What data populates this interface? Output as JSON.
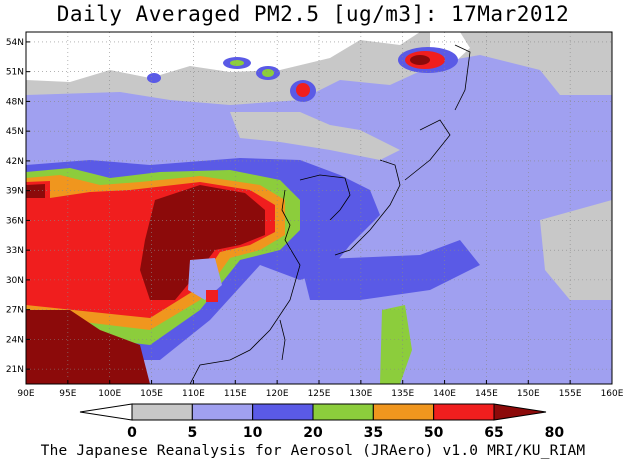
{
  "title": "Daily Averaged PM2.5 [ug/m3]: 17Mar2012",
  "footer": "The Japanese Reanalysis for Aerosol (JRAero) v1.0 MRI/KU_RIAM",
  "map": {
    "lon_range": [
      90,
      160
    ],
    "lat_range": [
      19.5,
      55
    ],
    "lon_ticks": [
      "90E",
      "95E",
      "100E",
      "105E",
      "110E",
      "115E",
      "120E",
      "125E",
      "130E",
      "135E",
      "140E",
      "145E",
      "150E",
      "155E",
      "160E"
    ],
    "lat_ticks": [
      "54N",
      "51N",
      "48N",
      "45N",
      "42N",
      "39N",
      "36N",
      "33N",
      "30N",
      "27N",
      "24N",
      "21N"
    ],
    "grid": true
  },
  "colorbar": {
    "levels": [
      "0",
      "5",
      "10",
      "20",
      "35",
      "50",
      "65",
      "80"
    ],
    "colors": [
      "#ffffff",
      "#c8c8c8",
      "#a0a0f0",
      "#5a5ae6",
      "#8ccd3c",
      "#f0961e",
      "#f01e1e",
      "#8c0a0a"
    ]
  }
}
